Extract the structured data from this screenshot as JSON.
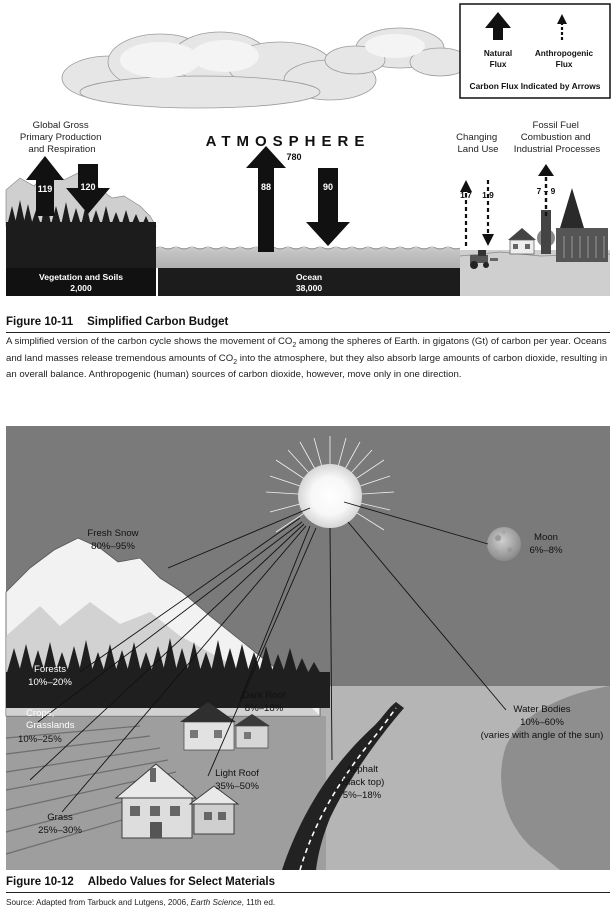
{
  "fig1": {
    "caption_number": "Figure 10-11",
    "caption_title": "Simplified Carbon Budget",
    "legend": {
      "natural_line1": "Natural",
      "natural_line2": "Flux",
      "anthro_line1": "Anthropogenic",
      "anthro_line2": "Flux",
      "footer": "Carbon Flux Indicated by Arrows"
    },
    "atmosphere": {
      "label": "ATMOSPHERE",
      "value": "780"
    },
    "gpp_label": [
      "Global Gross",
      "Primary Production",
      "and Respiration"
    ],
    "land_use_label": [
      "Changing",
      "Land Use"
    ],
    "fossil_label": [
      "Fossil Fuel",
      "Combustion and",
      "Industrial Processes"
    ],
    "arrows": {
      "veg_up": "119",
      "veg_down": "120",
      "ocean_up": "88",
      "ocean_down": "90",
      "land_up": "1.7",
      "land_down": "1.9",
      "fossil": "7 – 9"
    },
    "reservoirs": {
      "veg_label": "Vegetation and Soils",
      "veg_value": "2,000",
      "ocean_label": "Ocean",
      "ocean_value": "38,000"
    },
    "description_parts": [
      "A simplified version of the carbon cycle shows the movement of CO",
      "2",
      " among the spheres of Earth. in gigatons (Gt) of carbon per year. Oceans and land masses release tremendous amounts of CO",
      "2",
      " into the atmosphere, but they also absorb large amounts of carbon dioxide, resulting in an overall balance. Anthropogenic (human) sources of carbon dioxide, however, move only in one direction."
    ]
  },
  "fig2": {
    "caption_number": "Figure 10-12",
    "caption_title": "Albedo Values for Select Materials",
    "labels": {
      "fresh_snow": "Fresh Snow",
      "fresh_snow_value": "80%–95%",
      "moon": "Moon",
      "moon_value": "6%–8%",
      "forests": "Forests",
      "forests_value": "10%–20%",
      "crops": "Crops,",
      "grasslands": "Grasslands",
      "crops_value": "10%–25%",
      "dark_roof": "Dark Roof",
      "dark_roof_value": "8%–18%",
      "water": "Water Bodies",
      "water_value": "10%–60%",
      "water_note": "(varies with angle of the sun)",
      "light_roof": "Light Roof",
      "light_roof_value": "35%–50%",
      "asphalt": "Asphalt",
      "asphalt_note": "(black top)",
      "asphalt_value": "5%–18%",
      "grass": "Grass",
      "grass_value": "25%–30%"
    }
  },
  "source": {
    "prefix": "Source: Adapted from Tarbuck and Lutgens, 2006, ",
    "book": "Earth Science",
    "suffix": ", 11th ed."
  }
}
